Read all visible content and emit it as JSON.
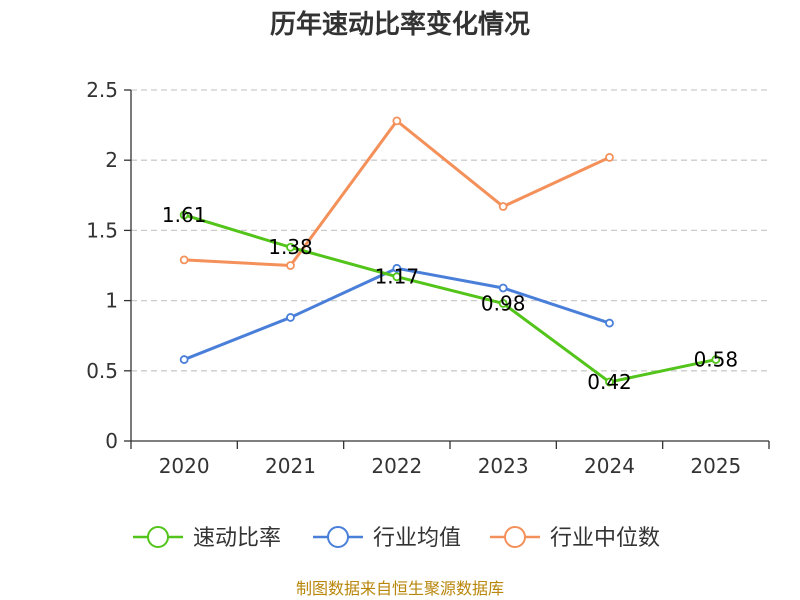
{
  "chart_data": {
    "type": "line",
    "title": "历年速动比率变化情况",
    "categories": [
      "2020",
      "2021",
      "2022",
      "2023",
      "2024",
      "2025"
    ],
    "ylim": [
      0,
      2.5
    ],
    "yticks": [
      "0",
      "0.5",
      "1",
      "1.5",
      "2",
      "2.5"
    ],
    "ytick_values": [
      0,
      0.5,
      1,
      1.5,
      2,
      2.5
    ],
    "grid": "horizontal-dashed",
    "legend_position": "bottom",
    "series": [
      {
        "name": "速动比率",
        "color": "#52c41a",
        "values": [
          1.61,
          1.38,
          1.17,
          0.98,
          0.42,
          0.58
        ],
        "labels": [
          "1.61",
          "1.38",
          "1.17",
          "0.98",
          "0.42",
          "0.58"
        ]
      },
      {
        "name": "行业均值",
        "color": "#4a7fd9",
        "values": [
          0.58,
          0.88,
          1.23,
          1.09,
          0.84,
          null
        ]
      },
      {
        "name": "行业中位数",
        "color": "#f4905a",
        "values": [
          1.29,
          1.25,
          2.28,
          1.67,
          2.02,
          null
        ]
      }
    ],
    "source": "制图数据来自恒生聚源数据库"
  }
}
